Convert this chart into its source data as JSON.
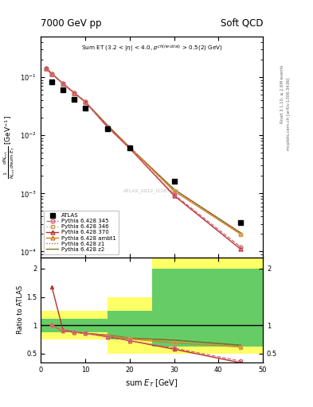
{
  "title_left": "7000 GeV pp",
  "title_right": "Soft QCD",
  "watermark": "ATLAS_2012_I1183818",
  "right_label_top": "Rivet 3.1.10, ≥ 2.6M events",
  "right_label_bot": "mcplots.cern.ch [arXiv:1306.3436]",
  "ylabel_main": "$\\frac{1}{N_{evt}}\\frac{dN_{evt}}{d\\mathrm{sum}E_T}$ [GeV$^{-1}$]",
  "ylabel_ratio": "Ratio to ATLAS",
  "xlabel": "sum $E_T$ [GeV]",
  "atlas_x": [
    2.5,
    5.0,
    7.5,
    10.0,
    15.0,
    20.0,
    30.0,
    45.0
  ],
  "atlas_y": [
    0.083,
    0.06,
    0.042,
    0.029,
    0.013,
    0.006,
    0.0016,
    0.00032
  ],
  "py345_x": [
    1.25,
    2.5,
    5.0,
    7.5,
    10.0,
    15.0,
    20.0,
    30.0,
    45.0
  ],
  "py345_y": [
    0.14,
    0.115,
    0.078,
    0.054,
    0.038,
    0.014,
    0.006,
    0.00096,
    0.00012
  ],
  "py346_x": [
    1.25,
    2.5,
    5.0,
    7.5,
    10.0,
    15.0,
    20.0,
    30.0,
    45.0
  ],
  "py346_y": [
    0.14,
    0.115,
    0.078,
    0.054,
    0.038,
    0.014,
    0.0062,
    0.00112,
    0.000195
  ],
  "py370_x": [
    1.25,
    2.5,
    5.0,
    7.5,
    10.0,
    15.0,
    20.0,
    30.0,
    45.0
  ],
  "py370_y": [
    0.14,
    0.115,
    0.078,
    0.054,
    0.038,
    0.014,
    0.006,
    0.00092,
    0.00011
  ],
  "pyambt1_x": [
    1.25,
    2.5,
    5.0,
    7.5,
    10.0,
    15.0,
    20.0,
    30.0,
    45.0
  ],
  "pyambt1_y": [
    0.14,
    0.115,
    0.078,
    0.054,
    0.038,
    0.014,
    0.0062,
    0.0011,
    0.0002
  ],
  "pyz1_x": [
    1.25,
    2.5,
    5.0,
    7.5,
    10.0,
    15.0,
    20.0,
    30.0,
    45.0
  ],
  "pyz1_y": [
    0.14,
    0.115,
    0.078,
    0.054,
    0.038,
    0.015,
    0.0064,
    0.00118,
    0.00021
  ],
  "pyz2_x": [
    1.25,
    2.5,
    5.0,
    7.5,
    10.0,
    15.0,
    20.0,
    30.0,
    45.0
  ],
  "pyz2_y": [
    0.14,
    0.115,
    0.078,
    0.054,
    0.038,
    0.015,
    0.0062,
    0.00118,
    0.00021
  ],
  "ratio_345_x": [
    2.5,
    5.0,
    7.5,
    10.0,
    15.0,
    20.0,
    30.0,
    45.0
  ],
  "ratio_345_y": [
    1.0,
    0.9,
    0.88,
    0.86,
    0.8,
    0.73,
    0.6,
    0.37
  ],
  "ratio_346_x": [
    2.5,
    5.0,
    7.5,
    10.0,
    15.0,
    20.0,
    30.0,
    45.0
  ],
  "ratio_346_y": [
    1.0,
    0.9,
    0.88,
    0.86,
    0.82,
    0.77,
    0.7,
    0.61
  ],
  "ratio_370_x": [
    2.5,
    5.0,
    7.5,
    10.0,
    15.0,
    20.0,
    30.0,
    45.0
  ],
  "ratio_370_y": [
    1.68,
    0.92,
    0.88,
    0.86,
    0.8,
    0.73,
    0.58,
    0.34
  ],
  "ratio_ambt1_x": [
    2.5,
    5.0,
    7.5,
    10.0,
    15.0,
    20.0,
    30.0,
    45.0
  ],
  "ratio_ambt1_y": [
    1.0,
    0.9,
    0.88,
    0.86,
    0.82,
    0.76,
    0.69,
    0.62
  ],
  "ratio_z1_x": [
    2.5,
    5.0,
    7.5,
    10.0,
    15.0,
    20.0,
    30.0,
    45.0
  ],
  "ratio_z1_y": [
    1.0,
    0.9,
    0.88,
    0.86,
    0.83,
    0.78,
    0.74,
    0.65
  ],
  "ratio_z2_x": [
    2.5,
    5.0,
    7.5,
    10.0,
    15.0,
    20.0,
    30.0,
    45.0
  ],
  "ratio_z2_y": [
    1.0,
    0.9,
    0.88,
    0.86,
    0.83,
    0.77,
    0.74,
    0.65
  ],
  "yellow_band_edges": [
    0,
    5,
    10,
    15,
    20,
    25,
    30,
    50
  ],
  "yellow_band_lo": [
    0.75,
    0.75,
    0.75,
    0.5,
    0.5,
    0.5,
    0.5,
    0.5
  ],
  "yellow_band_hi": [
    1.25,
    1.25,
    1.25,
    1.5,
    1.5,
    2.3,
    2.3,
    2.3
  ],
  "green_band_edges": [
    0,
    5,
    10,
    15,
    20,
    25,
    30,
    50
  ],
  "green_band_lo": [
    0.88,
    0.88,
    0.88,
    0.75,
    0.75,
    0.63,
    0.63,
    0.63
  ],
  "green_band_hi": [
    1.12,
    1.12,
    1.12,
    1.25,
    1.25,
    2.0,
    2.0,
    2.0
  ],
  "color_345": "#d4607a",
  "color_346": "#c8a050",
  "color_370": "#b83030",
  "color_ambt1": "#cc8020",
  "color_z1": "#b83030",
  "color_z2": "#7a7820",
  "ylim_main": [
    8e-05,
    0.5
  ],
  "ylim_ratio": [
    0.35,
    2.2
  ],
  "xlim": [
    0,
    50
  ],
  "yticks_ratio": [
    0.5,
    1.0,
    1.5,
    2.0
  ],
  "ytick_labels_ratio": [
    "0.5",
    "1",
    "1.5",
    "2"
  ]
}
